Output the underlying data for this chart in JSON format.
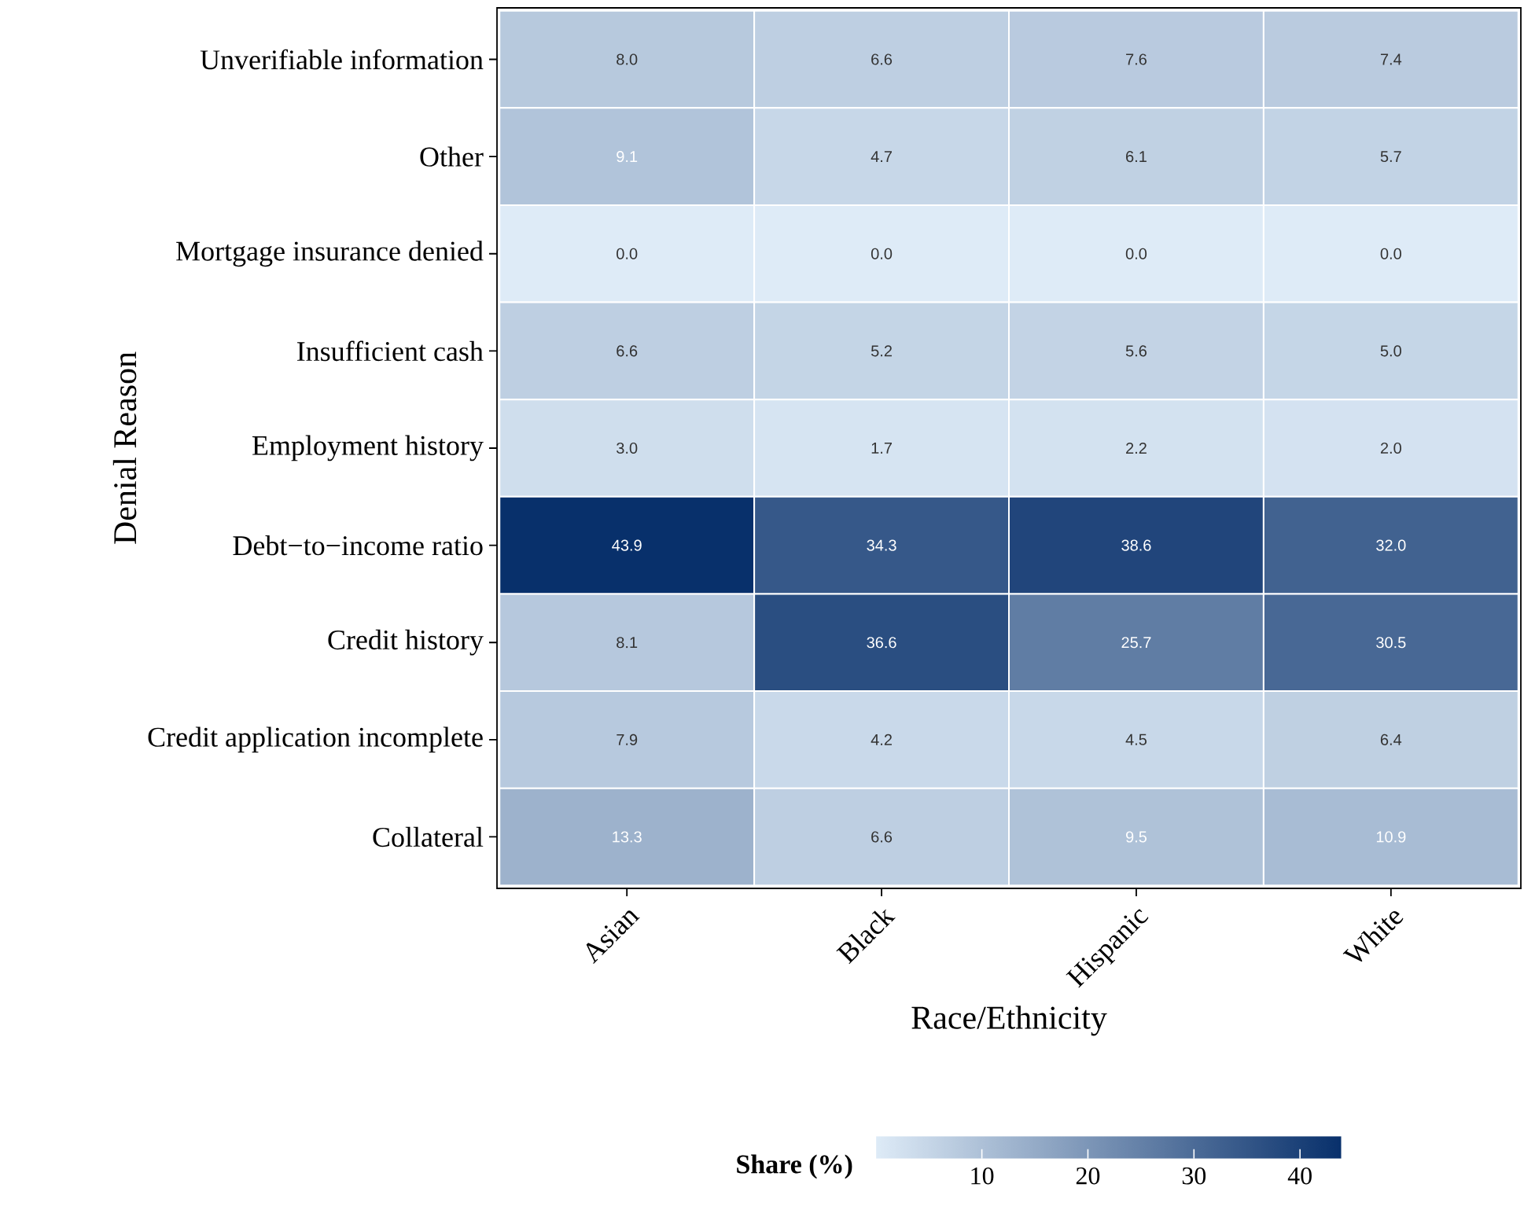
{
  "chart_data": {
    "type": "heatmap",
    "xlabel": "Race/Ethnicity",
    "ylabel": "Denial Reason",
    "clabel": "**Share (%)**",
    "categories": [
      "Asian",
      "Black",
      "Hispanic",
      "White"
    ],
    "y_categories": [
      "Unverifiable information",
      "Other",
      "Mortgage insurance denied",
      "Insufficient cash",
      "Employment history",
      "Debt−to−income ratio",
      "Credit history",
      "Credit application incomplete",
      "Collateral"
    ],
    "cells": [
      [
        8.0,
        6.6,
        7.6,
        7.4
      ],
      [
        9.1,
        4.7,
        6.1,
        5.7
      ],
      [
        0.0,
        0.0,
        0.0,
        0.0
      ],
      [
        6.6,
        5.2,
        5.6,
        5.0
      ],
      [
        3.0,
        1.7,
        2.2,
        2.0
      ],
      [
        43.9,
        34.3,
        38.6,
        32.0
      ],
      [
        8.1,
        36.6,
        25.7,
        30.5
      ],
      [
        7.9,
        4.2,
        4.5,
        6.4
      ],
      [
        13.3,
        6.6,
        9.5,
        10.9
      ]
    ],
    "cell_labels": [
      [
        "8.0",
        "6.6",
        "7.6",
        "7.4"
      ],
      [
        "9.1",
        "4.7",
        "6.1",
        "5.7"
      ],
      [
        "0.0",
        "0.0",
        "0.0",
        "0.0"
      ],
      [
        "6.6",
        "5.2",
        "5.6",
        "5.0"
      ],
      [
        "3.0",
        "1.7",
        "2.2",
        "2.0"
      ],
      [
        "43.9",
        "34.3",
        "38.6",
        "32.0"
      ],
      [
        "8.1",
        "36.6",
        "25.7",
        "30.5"
      ],
      [
        "7.9",
        "4.2",
        "4.5",
        "6.4"
      ],
      [
        "13.3",
        "6.6",
        "9.5",
        "10.9"
      ]
    ],
    "clim": [
      0,
      43.9
    ],
    "cticks": [
      10,
      20,
      30,
      40
    ],
    "data_labels": true
  }
}
